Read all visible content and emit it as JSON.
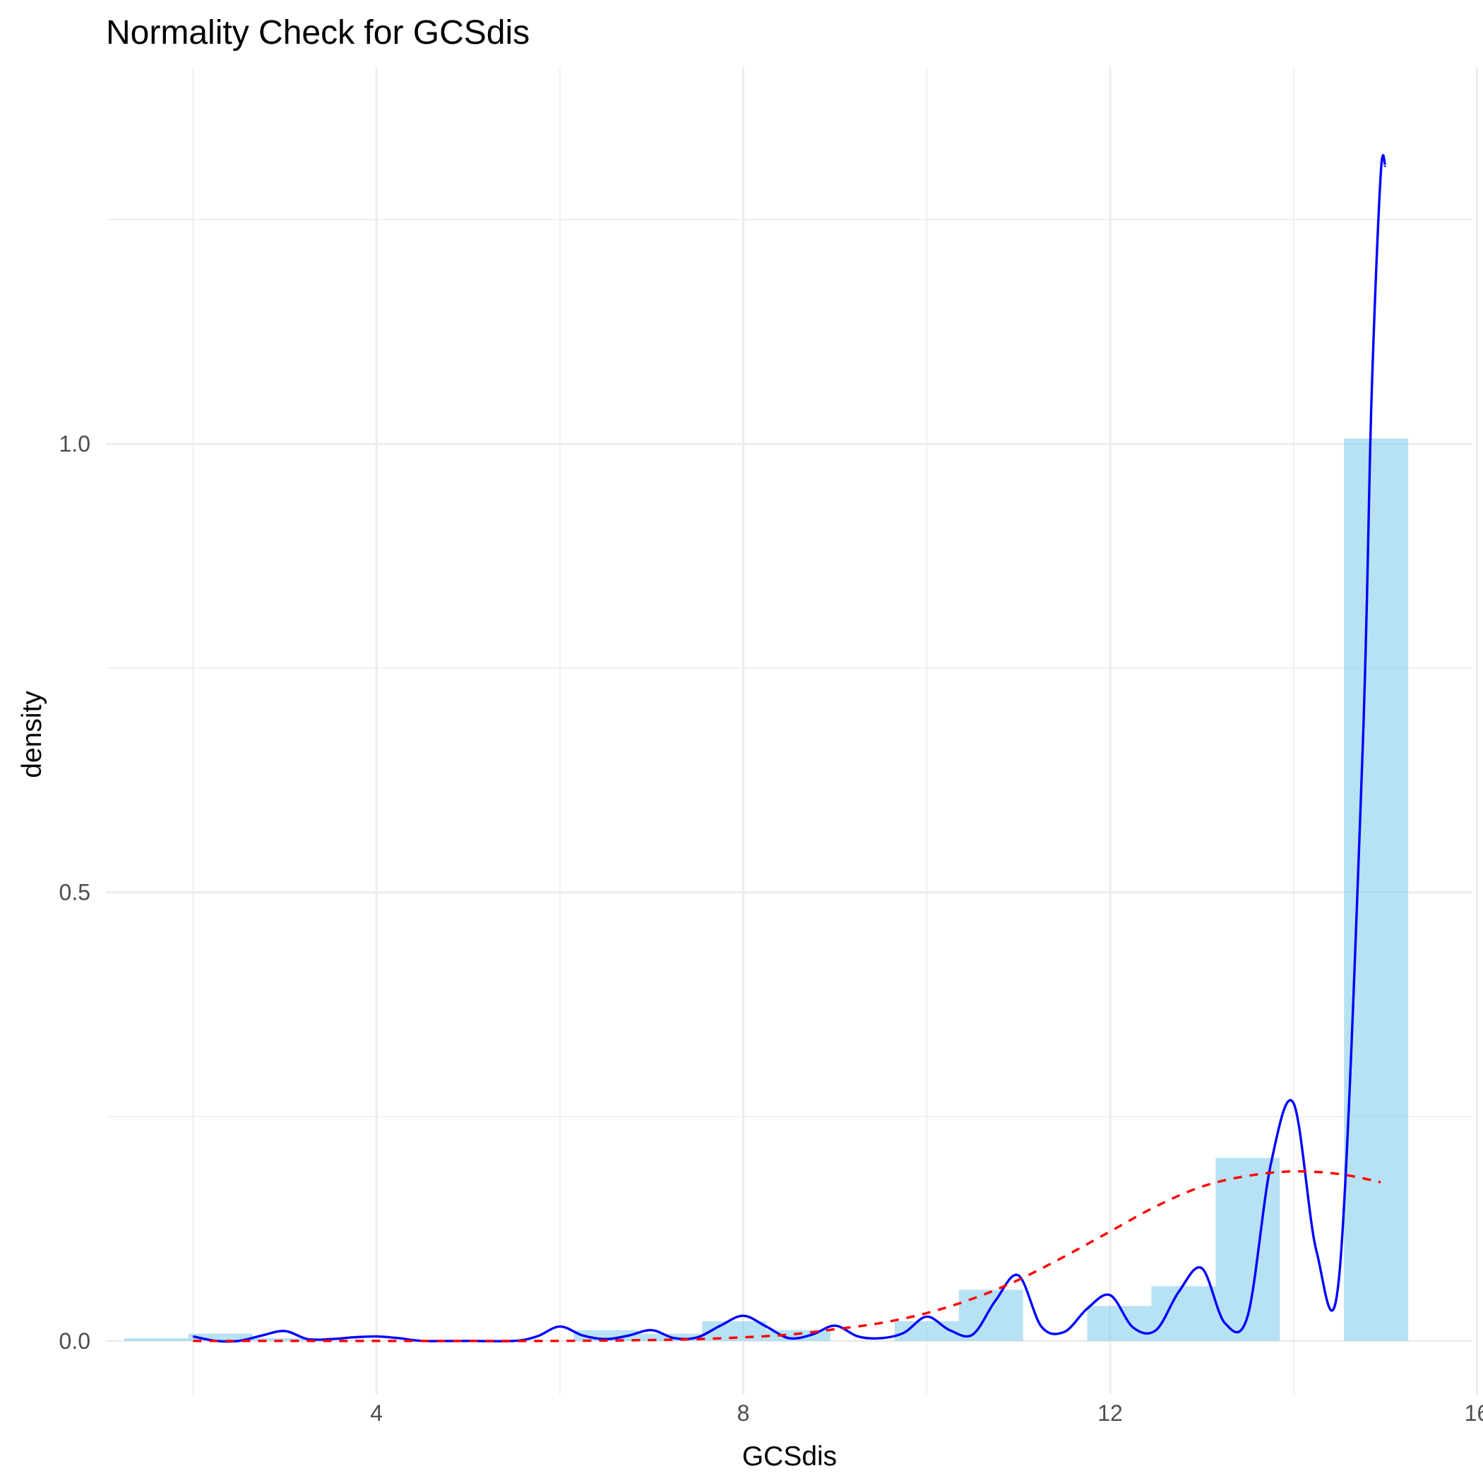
{
  "chart_data": {
    "type": "bar",
    "title": "Normality Check for GCSdis",
    "xlabel": "GCSdis",
    "ylabel": "density",
    "xlim": [
      1.05,
      15.95
    ],
    "ylim": [
      -0.06,
      1.42
    ],
    "x_ticks": [
      4,
      8,
      12,
      16
    ],
    "y_ticks": [
      0.0,
      0.5,
      1.0
    ],
    "x_tick_labels": [
      "4",
      "8",
      "12",
      "16"
    ],
    "y_tick_labels": [
      "0.0",
      "0.5",
      "1.0"
    ],
    "grid": true,
    "bin_width": 0.7,
    "histogram": {
      "name": "",
      "color": "#87ceeb",
      "opacity": 0.6,
      "bin_centers": [
        1.6,
        2.3,
        3.0,
        3.7,
        4.4,
        5.1,
        5.8,
        6.5,
        7.2,
        7.9,
        8.6,
        9.3,
        10.0,
        10.7,
        11.4,
        12.1,
        12.8,
        13.5,
        14.2,
        14.9
      ],
      "values": [
        0.003,
        0.008,
        0.003,
        0.0,
        0.0,
        0.0,
        0.0,
        0.012,
        0.008,
        0.022,
        0.012,
        0.0,
        0.022,
        0.057,
        0.0,
        0.039,
        0.061,
        0.204,
        0.0,
        1.006
      ]
    },
    "series": [
      {
        "type": "line",
        "style": "solid",
        "color": "#0000ff",
        "x": [
          2.0,
          2.25,
          2.5,
          2.75,
          3.0,
          3.25,
          3.5,
          3.75,
          4.0,
          4.25,
          4.5,
          5.0,
          5.5,
          5.75,
          6.0,
          6.25,
          6.5,
          6.75,
          7.0,
          7.25,
          7.5,
          7.75,
          8.0,
          8.25,
          8.5,
          8.75,
          9.0,
          9.25,
          9.5,
          9.75,
          10.0,
          10.25,
          10.5,
          10.75,
          11.0,
          11.25,
          11.5,
          11.75,
          12.0,
          12.25,
          12.5,
          12.75,
          13.0,
          13.25,
          13.5,
          13.75,
          14.0,
          14.25,
          14.5,
          14.75,
          14.85,
          14.95,
          15.0
        ],
        "y": [
          0.005,
          0.0,
          0.0,
          0.006,
          0.011,
          0.002,
          0.002,
          0.004,
          0.005,
          0.003,
          0.0,
          0.0,
          0.0,
          0.005,
          0.016,
          0.006,
          0.002,
          0.006,
          0.012,
          0.003,
          0.004,
          0.017,
          0.028,
          0.016,
          0.003,
          0.007,
          0.017,
          0.005,
          0.003,
          0.009,
          0.027,
          0.012,
          0.007,
          0.045,
          0.073,
          0.016,
          0.01,
          0.036,
          0.051,
          0.015,
          0.012,
          0.055,
          0.081,
          0.02,
          0.028,
          0.196,
          0.265,
          0.1,
          0.075,
          0.65,
          1.05,
          1.3,
          1.31
        ]
      },
      {
        "type": "line",
        "style": "dashed",
        "color": "#ff0000",
        "x": [
          2.0,
          3.0,
          4.0,
          5.0,
          6.0,
          7.0,
          7.5,
          8.0,
          8.5,
          9.0,
          9.5,
          10.0,
          10.5,
          11.0,
          11.5,
          12.0,
          12.5,
          13.0,
          13.5,
          14.0,
          14.5,
          14.95
        ],
        "y": [
          0.0,
          0.0,
          0.0,
          0.0,
          0.0,
          0.001,
          0.002,
          0.004,
          0.007,
          0.013,
          0.02,
          0.031,
          0.047,
          0.068,
          0.094,
          0.122,
          0.15,
          0.172,
          0.184,
          0.189,
          0.186,
          0.177
        ]
      }
    ]
  }
}
